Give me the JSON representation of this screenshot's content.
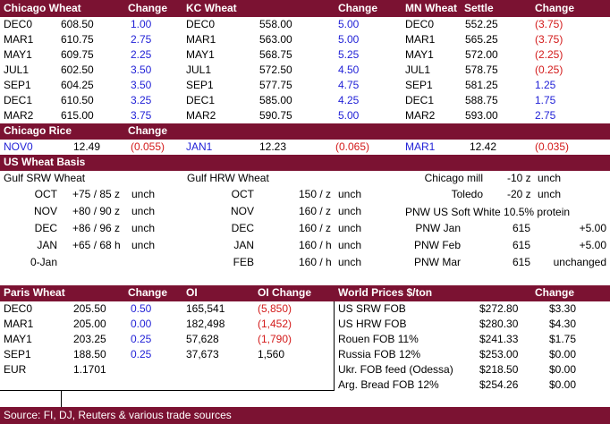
{
  "futures": {
    "headers": {
      "chicago": "Chicago Wheat",
      "chicago_change": "Change",
      "kc": "KC Wheat",
      "kc_change": "Change",
      "mn": "MN Wheat",
      "mn_settle": "Settle",
      "mn_change": "Change"
    },
    "rows": [
      {
        "c_m": "DEC0",
        "c_p": "608.50",
        "c_ch": "1.00",
        "k_m": "DEC0",
        "k_p": "558.00",
        "k_ch": "5.00",
        "m_m": "DEC0",
        "m_p": "552.25",
        "m_ch": "(3.75)"
      },
      {
        "c_m": "MAR1",
        "c_p": "610.75",
        "c_ch": "2.75",
        "k_m": "MAR1",
        "k_p": "563.00",
        "k_ch": "5.00",
        "m_m": "MAR1",
        "m_p": "565.25",
        "m_ch": "(3.75)"
      },
      {
        "c_m": "MAY1",
        "c_p": "609.75",
        "c_ch": "2.25",
        "k_m": "MAY1",
        "k_p": "568.75",
        "k_ch": "5.25",
        "m_m": "MAY1",
        "m_p": "572.00",
        "m_ch": "(2.25)"
      },
      {
        "c_m": "JUL1",
        "c_p": "602.50",
        "c_ch": "3.50",
        "k_m": "JUL1",
        "k_p": "572.50",
        "k_ch": "4.50",
        "m_m": "JUL1",
        "m_p": "578.75",
        "m_ch": "(0.25)"
      },
      {
        "c_m": "SEP1",
        "c_p": "604.25",
        "c_ch": "3.50",
        "k_m": "SEP1",
        "k_p": "577.75",
        "k_ch": "4.75",
        "m_m": "SEP1",
        "m_p": "581.25",
        "m_ch": "1.25"
      },
      {
        "c_m": "DEC1",
        "c_p": "610.50",
        "c_ch": "3.25",
        "k_m": "DEC1",
        "k_p": "585.00",
        "k_ch": "4.25",
        "m_m": "DEC1",
        "m_p": "588.75",
        "m_ch": "1.75"
      },
      {
        "c_m": "MAR2",
        "c_p": "615.00",
        "c_ch": "3.75",
        "k_m": "MAR2",
        "k_p": "590.75",
        "k_ch": "5.00",
        "m_m": "MAR2",
        "m_p": "593.00",
        "m_ch": "2.75"
      }
    ]
  },
  "rice": {
    "title": "Chicago Rice",
    "change": "Change",
    "row": {
      "m1": "NOV0",
      "p1": "12.49",
      "ch1": "(0.055)",
      "m2": "JAN1",
      "p2": "12.23",
      "ch2": "(0.065)",
      "m3": "MAR1",
      "p3": "12.42",
      "ch3": "(0.035)"
    }
  },
  "basis": {
    "title": "US Wheat Basis",
    "gulf_srw": "Gulf SRW Wheat",
    "gulf_hrw": "Gulf HRW Wheat",
    "srw_rows": [
      {
        "m": "OCT",
        "v": "+75 / 85 z",
        "s": "unch"
      },
      {
        "m": "NOV",
        "v": "+80 / 90 z",
        "s": "unch"
      },
      {
        "m": "DEC",
        "v": "+86 / 96 z",
        "s": "unch"
      },
      {
        "m": "JAN",
        "v": "+65 / 68 h",
        "s": "unch"
      },
      {
        "m": "0-Jan",
        "v": "",
        "s": ""
      }
    ],
    "hrw_rows": [
      {
        "m": "OCT",
        "v": "150 / z",
        "s": "unch"
      },
      {
        "m": "NOV",
        "v": "160 / z",
        "s": "unch"
      },
      {
        "m": "DEC",
        "v": "160 / z",
        "s": "unch"
      },
      {
        "m": "JAN",
        "v": "160 / h",
        "s": "unch"
      },
      {
        "m": "FEB",
        "v": "160 / h",
        "s": "unch"
      }
    ],
    "chicago_mill": {
      "label": "Chicago mill",
      "v": "-10 z",
      "s": "unch"
    },
    "toledo": {
      "label": "Toledo",
      "v": "-20 z",
      "s": "unch"
    },
    "pnw_title": "PNW US Soft White 10.5% protein",
    "pnw_rows": [
      {
        "m": "PNW Jan",
        "v": "615",
        "ch": "+5.00"
      },
      {
        "m": "PNW Feb",
        "v": "615",
        "ch": "+5.00"
      },
      {
        "m": "PNW Mar",
        "v": "615",
        "ch": "unchanged"
      }
    ]
  },
  "paris": {
    "headers": {
      "title": "Paris Wheat",
      "change": "Change",
      "oi": "OI",
      "oi_change": "OI Change"
    },
    "rows": [
      {
        "m": "DEC0",
        "p": "205.50",
        "ch": "0.50",
        "oi": "165,541",
        "oich": "(5,850)"
      },
      {
        "m": "MAR1",
        "p": "205.00",
        "ch": "0.00",
        "oi": "182,498",
        "oich": "(1,452)"
      },
      {
        "m": "MAY1",
        "p": "203.25",
        "ch": "0.25",
        "oi": "57,628",
        "oich": "(1,790)"
      },
      {
        "m": "SEP1",
        "p": "188.50",
        "ch": "0.25",
        "oi": "37,673",
        "oich": "1,560"
      }
    ],
    "eur": {
      "label": "EUR",
      "v": "1.1701"
    }
  },
  "world": {
    "headers": {
      "title": "World Prices $/ton",
      "change": "Change"
    },
    "rows": [
      {
        "n": "US SRW FOB",
        "p": "$272.80",
        "ch": "$3.30"
      },
      {
        "n": "US HRW FOB",
        "p": "$280.30",
        "ch": "$4.30"
      },
      {
        "n": "Rouen FOB 11%",
        "p": "$241.33",
        "ch": "$1.75"
      },
      {
        "n": "Russia FOB 12%",
        "p": "$253.00",
        "ch": "$0.00"
      },
      {
        "n": "Ukr. FOB feed (Odessa)",
        "p": "$218.50",
        "ch": "$0.00"
      },
      {
        "n": "Arg. Bread FOB 12%",
        "p": "$254.26",
        "ch": "$0.00"
      }
    ]
  },
  "footer": {
    "source": "Source: FI, DJ, Reuters & various trade sources"
  },
  "colors": {
    "header_bg": "#7b1232",
    "positive": "#1f1fd6",
    "negative": "#d31a1a"
  }
}
